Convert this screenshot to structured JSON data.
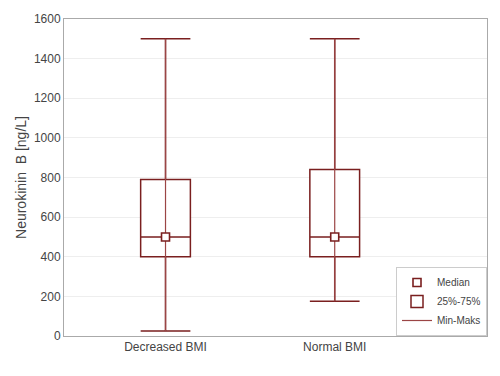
{
  "chart_data": {
    "type": "box",
    "categories": [
      "Decreased BMI",
      "Normal BMI"
    ],
    "y_label": "Neurokinin  B [ng/L]",
    "series": [
      {
        "name": "Median",
        "color": "#7a1f1f",
        "marker": "square",
        "values": [
          500,
          500
        ]
      },
      {
        "name": "25%-75%",
        "color": "#7a1f1f",
        "low": [
          400,
          400
        ],
        "high": [
          790,
          840
        ]
      },
      {
        "name": "Min-Maks",
        "color": "#9b4545",
        "low": [
          25,
          175
        ],
        "high": [
          1500,
          1500
        ]
      }
    ],
    "ylim": [
      0,
      1600
    ],
    "yticks": [
      0,
      200,
      400,
      600,
      800,
      1000,
      1200,
      1400,
      1600
    ],
    "grid": true,
    "legend": "lower right"
  }
}
